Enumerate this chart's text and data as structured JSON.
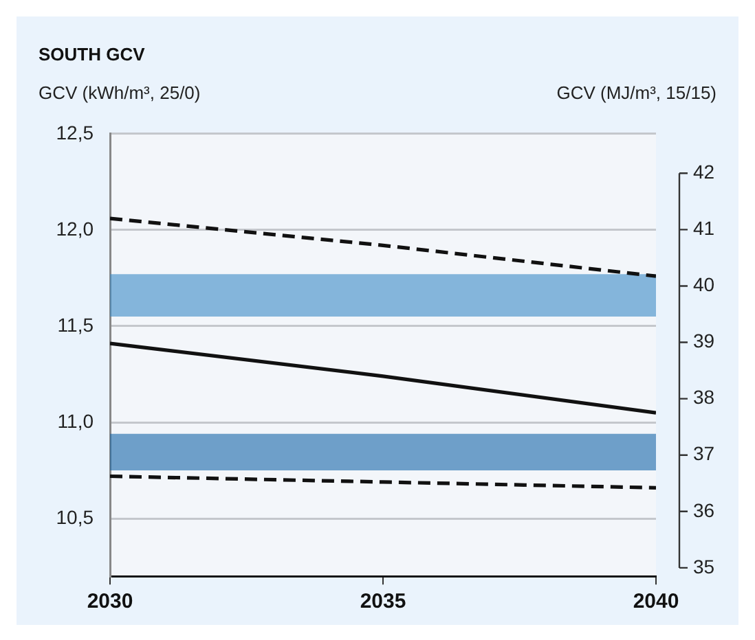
{
  "chart_data": {
    "type": "line",
    "title": "SOUTH GCV",
    "ylabel": "GCV (kWh/m³, 25/0)",
    "y2label": "GCV (MJ/m³, 15/15)",
    "x": [
      2030,
      2035,
      2040
    ],
    "series": [
      {
        "color": "#111111",
        "values": [
          12.06,
          11.92,
          11.76
        ],
        "line_style": "dashed"
      },
      {
        "color": "#111111",
        "values": [
          11.41,
          11.24,
          11.05
        ],
        "line_style": "solid"
      },
      {
        "color": "#111111",
        "values": [
          10.72,
          10.69,
          10.66
        ],
        "line_style": "dashed"
      }
    ],
    "bands": [
      {
        "axis": "y",
        "from": 11.55,
        "to": 11.77,
        "color": "#3a8bc6"
      },
      {
        "axis": "y",
        "from": 10.75,
        "to": 10.94,
        "color": "#1565a8"
      }
    ],
    "xlim": [
      2030,
      2040
    ],
    "xticks": [
      2030,
      2035,
      2040
    ],
    "ylim": [
      10.2,
      12.5
    ],
    "yticks": [
      {
        "value": 10.5,
        "label": "10,5"
      },
      {
        "value": 11,
        "label": "11,0"
      },
      {
        "value": 11.5,
        "label": "11,5"
      },
      {
        "value": 12,
        "label": "12,0"
      },
      {
        "value": 12.5,
        "label": "12,5"
      }
    ],
    "y2lim": [
      34.85,
      42.7
    ],
    "y2ticks": [
      35,
      36,
      37,
      38,
      39,
      40,
      41,
      42
    ],
    "grid": "y",
    "legend": false,
    "marker": "none"
  }
}
